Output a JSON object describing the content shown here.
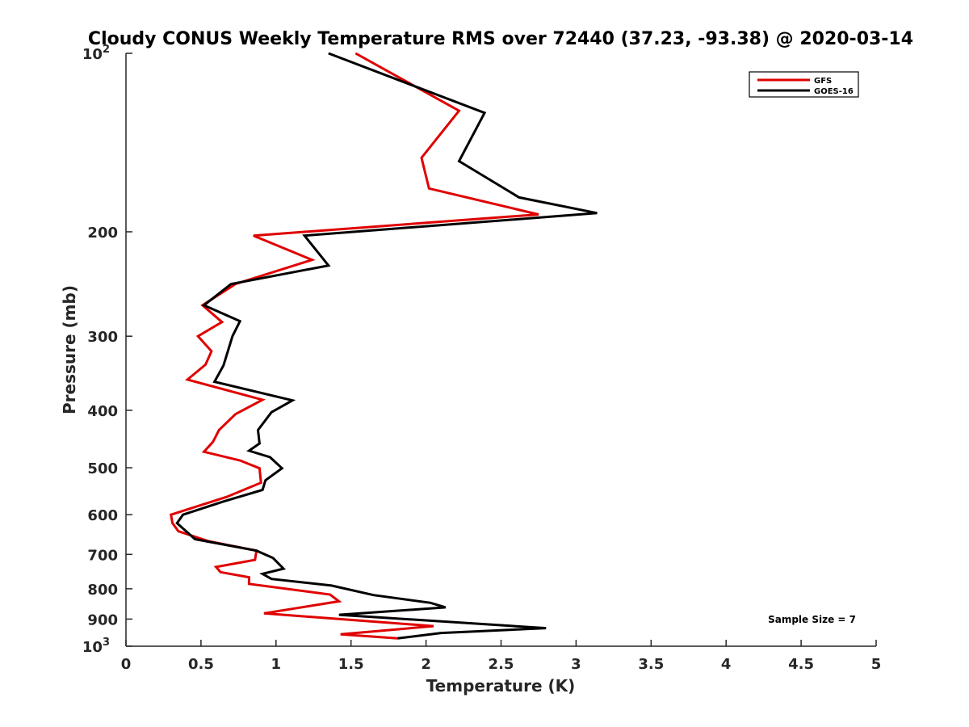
{
  "chart_data": {
    "type": "line",
    "title": "Cloudy CONUS Weekly Temperature RMS over 72440 (37.23, -93.38) @ 2020-03-14",
    "xlabel": "Temperature (K)",
    "ylabel": "Pressure (mb)",
    "xlim": [
      0,
      5
    ],
    "ylim": [
      100,
      1000
    ],
    "y_scale": "log",
    "y_reversed": true,
    "x_ticks": [
      "0",
      "0.5",
      "1",
      "1.5",
      "2",
      "2.5",
      "3",
      "3.5",
      "4",
      "4.5",
      "5"
    ],
    "y_ticks": [
      {
        "value": 100,
        "label": "10",
        "sup": "2"
      },
      {
        "value": 200,
        "label": "200",
        "sup": ""
      },
      {
        "value": 300,
        "label": "300",
        "sup": ""
      },
      {
        "value": 400,
        "label": "400",
        "sup": ""
      },
      {
        "value": 500,
        "label": "500",
        "sup": ""
      },
      {
        "value": 600,
        "label": "600",
        "sup": ""
      },
      {
        "value": 700,
        "label": "700",
        "sup": ""
      },
      {
        "value": 800,
        "label": "800",
        "sup": ""
      },
      {
        "value": 900,
        "label": "900",
        "sup": ""
      },
      {
        "value": 1000,
        "label": "10",
        "sup": "3"
      }
    ],
    "legend_position": "top-right",
    "grid": false,
    "annotation": "Sample Size = 7",
    "series": [
      {
        "name": "GFS",
        "color": "#e00000",
        "points": [
          [
            1.53,
            100
          ],
          [
            2.22,
            125
          ],
          [
            1.97,
            150
          ],
          [
            2.02,
            169
          ],
          [
            2.75,
            187
          ],
          [
            0.85,
            203
          ],
          [
            1.24,
            223
          ],
          [
            0.73,
            245
          ],
          [
            0.51,
            266
          ],
          [
            0.64,
            284
          ],
          [
            0.48,
            300
          ],
          [
            0.57,
            318
          ],
          [
            0.53,
            335
          ],
          [
            0.41,
            355
          ],
          [
            0.91,
            384
          ],
          [
            0.73,
            406
          ],
          [
            0.62,
            432
          ],
          [
            0.58,
            452
          ],
          [
            0.52,
            470
          ],
          [
            0.76,
            486
          ],
          [
            0.89,
            501
          ],
          [
            0.9,
            530
          ],
          [
            0.67,
            560
          ],
          [
            0.3,
            600
          ],
          [
            0.31,
            620
          ],
          [
            0.35,
            640
          ],
          [
            0.55,
            665
          ],
          [
            0.87,
            690
          ],
          [
            0.86,
            715
          ],
          [
            0.6,
            735
          ],
          [
            0.63,
            750
          ],
          [
            0.82,
            765
          ],
          [
            0.82,
            785
          ],
          [
            1.36,
            818
          ],
          [
            1.42,
            840
          ],
          [
            0.92,
            880
          ],
          [
            2.05,
            925
          ],
          [
            1.43,
            955
          ],
          [
            1.81,
            970
          ]
        ]
      },
      {
        "name": "GOES-16",
        "color": "#000000",
        "points": [
          [
            1.35,
            100
          ],
          [
            2.39,
            126
          ],
          [
            2.22,
            152
          ],
          [
            2.62,
            175
          ],
          [
            3.14,
            186
          ],
          [
            1.19,
            203
          ],
          [
            1.35,
            228
          ],
          [
            0.7,
            245
          ],
          [
            0.52,
            266
          ],
          [
            0.76,
            283
          ],
          [
            0.71,
            300
          ],
          [
            0.65,
            336
          ],
          [
            0.59,
            358
          ],
          [
            1.11,
            385
          ],
          [
            0.97,
            403
          ],
          [
            0.88,
            432
          ],
          [
            0.89,
            455
          ],
          [
            0.82,
            468
          ],
          [
            0.96,
            480
          ],
          [
            1.04,
            501
          ],
          [
            0.93,
            525
          ],
          [
            0.91,
            545
          ],
          [
            0.65,
            570
          ],
          [
            0.38,
            600
          ],
          [
            0.34,
            620
          ],
          [
            0.46,
            660
          ],
          [
            0.87,
            690
          ],
          [
            0.98,
            710
          ],
          [
            1.05,
            740
          ],
          [
            0.91,
            755
          ],
          [
            0.97,
            770
          ],
          [
            1.37,
            790
          ],
          [
            1.65,
            820
          ],
          [
            2.03,
            845
          ],
          [
            2.13,
            860
          ],
          [
            1.42,
            885
          ],
          [
            2.8,
            932
          ],
          [
            2.1,
            950
          ],
          [
            1.81,
            970
          ]
        ]
      }
    ]
  }
}
